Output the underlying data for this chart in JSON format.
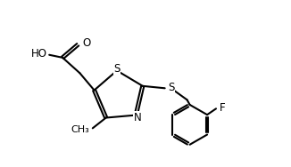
{
  "bg_color": "#ffffff",
  "line_color": "#000000",
  "bond_width": 1.5,
  "font_size_atoms": 8.5,
  "figsize": [
    3.26,
    1.88
  ],
  "dpi": 100,
  "xlim": [
    0.0,
    10.0
  ],
  "ylim": [
    0.5,
    6.5
  ]
}
